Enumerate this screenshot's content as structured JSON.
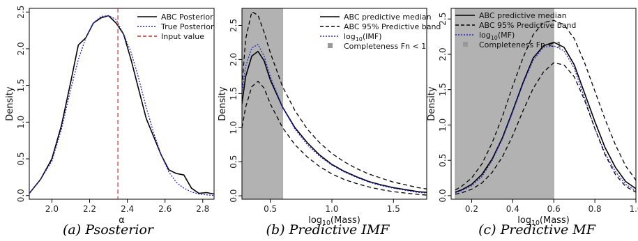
{
  "figure": {
    "captions": [
      "(a) Psosterior",
      "(b) Predictive IMF",
      "(c) Predictive MF"
    ]
  },
  "chart_data": [
    {
      "type": "line",
      "title": "",
      "xlabel": "α",
      "ylabel": "Density",
      "xlim": [
        1.88,
        2.86
      ],
      "ylim": [
        -0.05,
        2.55
      ],
      "xticks": [
        "2.0",
        "2.2",
        "2.4",
        "2.6",
        "2.8"
      ],
      "xtick_values": [
        2.0,
        2.2,
        2.4,
        2.6,
        2.8
      ],
      "yticks": [
        "0.0",
        "0.5",
        "1.0",
        "1.5",
        "2.0",
        "2.5"
      ],
      "ytick_values": [
        0.0,
        0.5,
        1.0,
        1.5,
        2.0,
        2.5
      ],
      "legend": {
        "position": "top-right",
        "entries": [
          "ABC Posterior",
          "True Posterior",
          "Input value"
        ]
      },
      "series": [
        {
          "name": "ABC Posterior",
          "color": "#000000",
          "style": "solid",
          "x": [
            1.88,
            1.94,
            2.0,
            2.05,
            2.1,
            2.14,
            2.18,
            2.22,
            2.26,
            2.3,
            2.34,
            2.38,
            2.42,
            2.46,
            2.5,
            2.54,
            2.58,
            2.62,
            2.66,
            2.7,
            2.74,
            2.78,
            2.82,
            2.86
          ],
          "y": [
            0.03,
            0.22,
            0.5,
            0.95,
            1.55,
            2.05,
            2.15,
            2.35,
            2.42,
            2.45,
            2.35,
            2.2,
            1.85,
            1.45,
            1.05,
            0.8,
            0.55,
            0.35,
            0.3,
            0.28,
            0.1,
            0.03,
            0.04,
            0.02
          ]
        },
        {
          "name": "True Posterior",
          "color": "#2222dd",
          "style": "dotted",
          "x": [
            1.88,
            1.94,
            2.0,
            2.05,
            2.1,
            2.14,
            2.18,
            2.22,
            2.26,
            2.3,
            2.34,
            2.38,
            2.42,
            2.46,
            2.5,
            2.54,
            2.58,
            2.62,
            2.66,
            2.7,
            2.74,
            2.78,
            2.82,
            2.86
          ],
          "y": [
            0.03,
            0.22,
            0.47,
            0.9,
            1.45,
            1.85,
            2.15,
            2.35,
            2.44,
            2.45,
            2.4,
            2.2,
            1.95,
            1.6,
            1.2,
            0.85,
            0.55,
            0.32,
            0.18,
            0.1,
            0.05,
            0.02,
            0.01,
            0.0
          ]
        }
      ],
      "vline": {
        "name": "Input value",
        "x": 2.35,
        "color": "#dd2222"
      }
    },
    {
      "type": "line",
      "title": "",
      "xlabel": "log10(Mass)",
      "ylabel": "Density",
      "xlim": [
        0.27,
        1.77
      ],
      "ylim": [
        -0.05,
        2.75
      ],
      "xticks": [
        "0.5",
        "1.0",
        "1.5"
      ],
      "xtick_values": [
        0.5,
        1.0,
        1.5
      ],
      "yticks": [
        "0.0",
        "0.5",
        "1.0",
        "1.5",
        "2.0",
        "2.5"
      ],
      "ytick_values": [
        0.0,
        0.5,
        1.0,
        1.5,
        2.0,
        2.5
      ],
      "legend": {
        "position": "top-right",
        "entries": [
          "ABC predictive median",
          "ABC 95% Predictive band",
          "log10(IMF)",
          "Completeness Fn < 1"
        ]
      },
      "shaded_region": {
        "name": "Completeness Fn < 1",
        "x": [
          0.27,
          0.6
        ],
        "color": "#b2b2b2"
      },
      "series": [
        {
          "name": "ABC predictive median",
          "color": "#000000",
          "style": "solid",
          "x": [
            0.27,
            0.3,
            0.35,
            0.4,
            0.45,
            0.5,
            0.6,
            0.7,
            0.8,
            0.9,
            1.0,
            1.1,
            1.2,
            1.3,
            1.4,
            1.5,
            1.6,
            1.7,
            1.77
          ],
          "y": [
            1.35,
            1.75,
            2.05,
            2.12,
            1.98,
            1.7,
            1.3,
            1.0,
            0.78,
            0.6,
            0.46,
            0.36,
            0.28,
            0.21,
            0.16,
            0.12,
            0.09,
            0.06,
            0.05
          ]
        },
        {
          "name": "log10(IMF)",
          "color": "#2222dd",
          "style": "dotted",
          "x": [
            0.27,
            0.3,
            0.35,
            0.4,
            0.45,
            0.5,
            0.6,
            0.7,
            0.8,
            0.9,
            1.0,
            1.1,
            1.2,
            1.3,
            1.4,
            1.5,
            1.6,
            1.7,
            1.77
          ],
          "y": [
            1.5,
            1.9,
            2.17,
            2.22,
            2.05,
            1.75,
            1.3,
            0.98,
            0.75,
            0.58,
            0.45,
            0.35,
            0.27,
            0.2,
            0.15,
            0.11,
            0.08,
            0.05,
            0.04
          ]
        },
        {
          "name": "ABC 95% Predictive band (upper)",
          "color": "#000000",
          "style": "dashed",
          "x": [
            0.27,
            0.3,
            0.35,
            0.4,
            0.45,
            0.5,
            0.6,
            0.7,
            0.8,
            0.9,
            1.0,
            1.1,
            1.2,
            1.3,
            1.4,
            1.5,
            1.6,
            1.7,
            1.77
          ],
          "y": [
            1.6,
            2.3,
            2.7,
            2.65,
            2.4,
            2.1,
            1.6,
            1.25,
            0.98,
            0.78,
            0.62,
            0.5,
            0.4,
            0.32,
            0.26,
            0.2,
            0.16,
            0.12,
            0.1
          ]
        },
        {
          "name": "ABC 95% Predictive band (lower)",
          "color": "#000000",
          "style": "dashed",
          "x": [
            0.27,
            0.3,
            0.35,
            0.4,
            0.45,
            0.5,
            0.6,
            0.7,
            0.8,
            0.9,
            1.0,
            1.1,
            1.2,
            1.3,
            1.4,
            1.5,
            1.6,
            1.7,
            1.77
          ],
          "y": [
            1.0,
            1.3,
            1.6,
            1.68,
            1.58,
            1.35,
            1.0,
            0.75,
            0.57,
            0.43,
            0.32,
            0.24,
            0.18,
            0.13,
            0.09,
            0.06,
            0.04,
            0.02,
            0.01
          ]
        }
      ]
    },
    {
      "type": "line",
      "title": "",
      "xlabel": "log10(Mass)",
      "ylabel": "Density",
      "xlim": [
        0.1,
        1.0
      ],
      "ylim": [
        -0.05,
        2.65
      ],
      "xticks": [
        "0.2",
        "0.4",
        "0.6",
        "0.8",
        "1.0"
      ],
      "xtick_values": [
        0.2,
        0.4,
        0.6,
        0.8,
        1.0
      ],
      "yticks": [
        "0.0",
        "0.5",
        "1.0",
        "1.5",
        "2.0",
        "2.5"
      ],
      "ytick_values": [
        0.0,
        0.5,
        1.0,
        1.5,
        2.0,
        2.5
      ],
      "legend": {
        "position": "top-left",
        "entries": [
          "ABC predictive median",
          "ABC 95% Predictive band",
          "log10(MF)",
          "Completeness Fn < 1"
        ]
      },
      "shaded_region": {
        "name": "Completeness Fn < 1",
        "x": [
          0.12,
          0.6
        ],
        "color": "#b2b2b2"
      },
      "series": [
        {
          "name": "ABC predictive median",
          "color": "#000000",
          "style": "solid",
          "x": [
            0.12,
            0.15,
            0.2,
            0.25,
            0.3,
            0.35,
            0.4,
            0.45,
            0.5,
            0.55,
            0.6,
            0.65,
            0.7,
            0.75,
            0.8,
            0.85,
            0.9,
            0.95,
            1.0
          ],
          "y": [
            0.05,
            0.08,
            0.16,
            0.3,
            0.52,
            0.82,
            1.2,
            1.6,
            1.95,
            2.12,
            2.17,
            2.1,
            1.85,
            1.45,
            1.05,
            0.68,
            0.4,
            0.2,
            0.1
          ]
        },
        {
          "name": "log10(MF)",
          "color": "#2222dd",
          "style": "dotted",
          "x": [
            0.12,
            0.15,
            0.2,
            0.25,
            0.3,
            0.35,
            0.4,
            0.45,
            0.5,
            0.55,
            0.6,
            0.65,
            0.7,
            0.75,
            0.8,
            0.85,
            0.9,
            0.95,
            1.0
          ],
          "y": [
            0.04,
            0.07,
            0.14,
            0.27,
            0.5,
            0.8,
            1.18,
            1.58,
            1.92,
            2.1,
            2.12,
            2.05,
            1.8,
            1.38,
            0.95,
            0.6,
            0.34,
            0.16,
            0.07
          ]
        },
        {
          "name": "ABC 95% Predictive band (upper)",
          "color": "#000000",
          "style": "dashed",
          "x": [
            0.12,
            0.15,
            0.2,
            0.25,
            0.3,
            0.35,
            0.4,
            0.45,
            0.5,
            0.55,
            0.6,
            0.65,
            0.7,
            0.75,
            0.8,
            0.85,
            0.9,
            0.95,
            1.0
          ],
          "y": [
            0.08,
            0.13,
            0.25,
            0.45,
            0.75,
            1.12,
            1.55,
            1.95,
            2.28,
            2.45,
            2.48,
            2.42,
            2.22,
            1.88,
            1.48,
            1.08,
            0.72,
            0.42,
            0.22
          ]
        },
        {
          "name": "ABC 95% Predictive band (lower)",
          "color": "#000000",
          "style": "dashed",
          "x": [
            0.12,
            0.15,
            0.2,
            0.25,
            0.3,
            0.35,
            0.4,
            0.45,
            0.5,
            0.55,
            0.6,
            0.65,
            0.7,
            0.75,
            0.8,
            0.85,
            0.9,
            0.95,
            1.0
          ],
          "y": [
            0.02,
            0.04,
            0.09,
            0.18,
            0.33,
            0.55,
            0.85,
            1.2,
            1.52,
            1.75,
            1.88,
            1.85,
            1.68,
            1.35,
            0.95,
            0.58,
            0.3,
            0.13,
            0.05
          ]
        }
      ]
    }
  ]
}
